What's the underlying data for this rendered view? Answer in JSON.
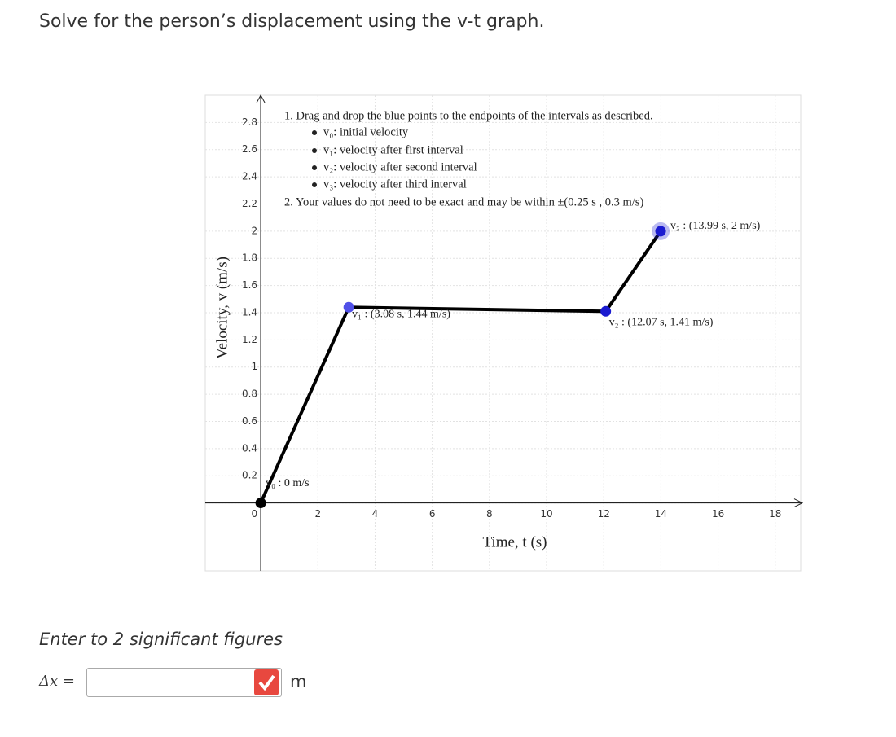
{
  "question": "Solve for the person’s displacement using the v-t graph.",
  "graph": {
    "type": "line",
    "x_label": "Time, t (s)",
    "y_label": "Velocity, v (m/s)",
    "xlim": [
      -1.94,
      18.89
    ],
    "ylim": [
      -0.5,
      3.0
    ],
    "xticks": [
      2,
      4,
      6,
      8,
      10,
      12,
      14,
      16,
      18
    ],
    "yticks": [
      0,
      0.2,
      0.4,
      0.6,
      0.8,
      1,
      1.2,
      1.4,
      1.6,
      1.8,
      2,
      2.2,
      2.4,
      2.6,
      2.8
    ],
    "grid": true,
    "instructions": [
      "1. Drag and drop the blue points to the endpoints of the intervals as described.",
      "v₀: initial velocity",
      "v₁: velocity after first interval",
      "v₂: velocity after second interval",
      "v₃: velocity after third interval",
      "2. Your values do not need to be exact and may be within ±(0.25 s , 0.3 m/s)"
    ],
    "series": {
      "color": "#000000",
      "t": [
        0,
        3.08,
        12.07,
        13.99
      ],
      "v": [
        0,
        1.44,
        1.41,
        2
      ]
    },
    "points": [
      {
        "label": "v₀ : 0 m/s",
        "color": "#000000"
      },
      {
        "label": "v₁ : (3.08 s, 1.44 m/s)",
        "color": "#5050e8"
      },
      {
        "label": "v₂ : (12.07 s, 1.41 m/s)",
        "color": "#1a1ad0"
      },
      {
        "label": "v₃ : (13.99 s, 2 m/s)",
        "color": "#1a1ad0"
      }
    ]
  },
  "answer": {
    "prompt": "Enter to 2 significant figures",
    "variable": "Δx =",
    "unit": "m",
    "input": ""
  }
}
